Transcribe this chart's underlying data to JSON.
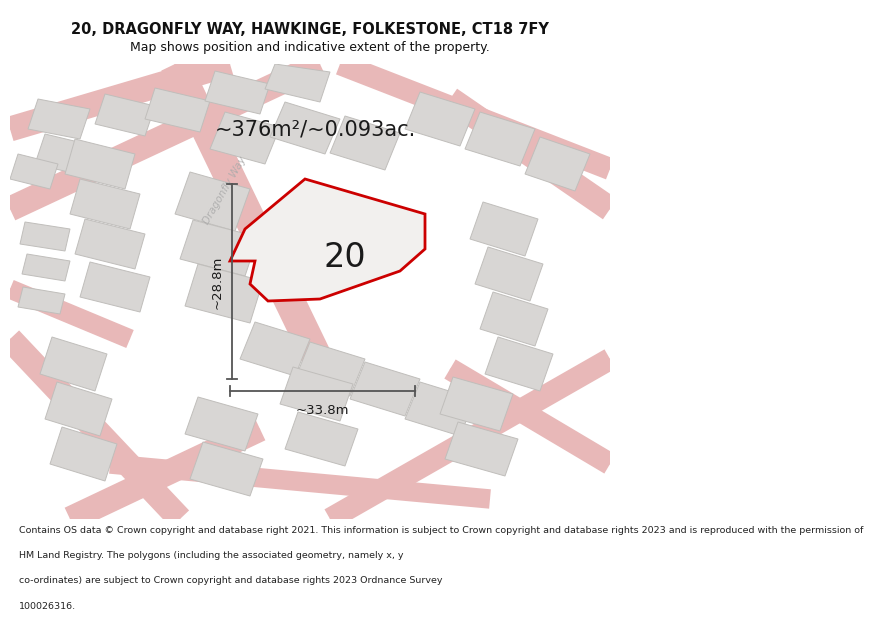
{
  "title_line1": "20, DRAGONFLY WAY, HAWKINGE, FOLKESTONE, CT18 7FY",
  "title_line2": "Map shows position and indicative extent of the property.",
  "area_text": "~376m²/~0.093ac.",
  "label_number": "20",
  "dim_height": "~28.8m",
  "dim_width": "~33.8m",
  "road_label": "Dragonfly Way",
  "footer_lines": [
    "Contains OS data © Crown copyright and database right 2021. This information is subject to Crown copyright and database rights 2023 and is reproduced with the permission of",
    "HM Land Registry. The polygons (including the associated geometry, namely x, y",
    "co-ordinates) are subject to Crown copyright and database rights 2023 Ordnance Survey",
    "100026316."
  ],
  "map_bg": "#f2f0ee",
  "road_line_color": "#e8b8b8",
  "road_line_color2": "#f0c8c8",
  "building_fill": "#d8d6d4",
  "building_stroke": "#c0bebb",
  "plot_fill": "#f2f0ee",
  "plot_outline_color": "#cc0000",
  "dim_line_color": "#555555",
  "text_color": "#111111",
  "footer_color": "#222222",
  "title_fontsize": 10.5,
  "subtitle_fontsize": 9.0,
  "area_fontsize": 15,
  "label_fontsize": 24,
  "road_label_fontsize": 7.5,
  "dim_fontsize": 9.5,
  "footer_fontsize": 6.8
}
